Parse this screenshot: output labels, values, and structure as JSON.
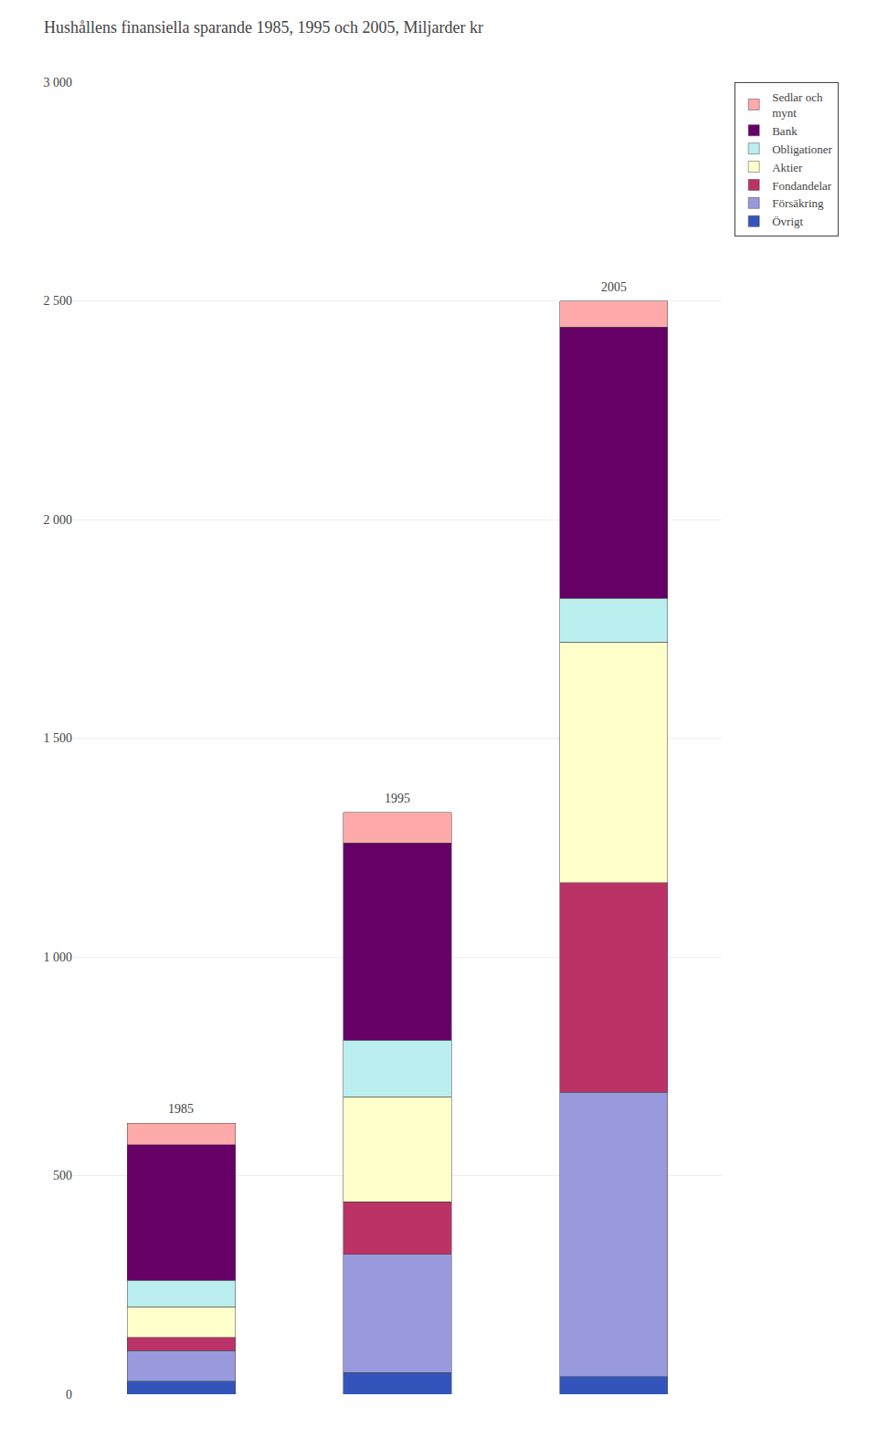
{
  "chart_data": {
    "type": "bar",
    "title": "Hushållens finansiella sparande 1985, 1995 och 2005, Miljarder kr",
    "categories": [
      "1985",
      "1995",
      "2005"
    ],
    "series": [
      {
        "name": "Övrigt",
        "color": "#3355bb",
        "values": [
          30,
          50,
          40
        ]
      },
      {
        "name": "Försäkring",
        "color": "#9999dd",
        "values": [
          70,
          270,
          650
        ]
      },
      {
        "name": "Fondandelar",
        "color": "#bb3366",
        "values": [
          30,
          120,
          480
        ]
      },
      {
        "name": "Aktier",
        "color": "#ffffcc",
        "values": [
          70,
          240,
          550
        ]
      },
      {
        "name": "Obligationer",
        "color": "#bbeeee",
        "values": [
          60,
          130,
          100
        ]
      },
      {
        "name": "Bank",
        "color": "#660066",
        "values": [
          310,
          450,
          620
        ]
      },
      {
        "name": "Sedlar och\nmynt",
        "color": "#ffaaaa",
        "values": [
          50,
          70,
          60
        ]
      }
    ],
    "annotations": [
      {
        "x": "1985",
        "text": "1985"
      },
      {
        "x": "1995",
        "text": "1995"
      },
      {
        "x": "2005",
        "text": "2005"
      }
    ],
    "ylim": [
      0,
      3000
    ],
    "yticks": [
      0,
      500,
      {
        "value": 1000,
        "label": "1 000"
      },
      {
        "value": 1500,
        "label": "1 500"
      },
      {
        "value": 2000,
        "label": "2 000"
      },
      {
        "value": 2500,
        "label": "2 500"
      },
      {
        "value": 3000,
        "label": "3 000"
      }
    ],
    "stacked": true,
    "grid": true,
    "legend": "right",
    "tick_labels": "y"
  }
}
